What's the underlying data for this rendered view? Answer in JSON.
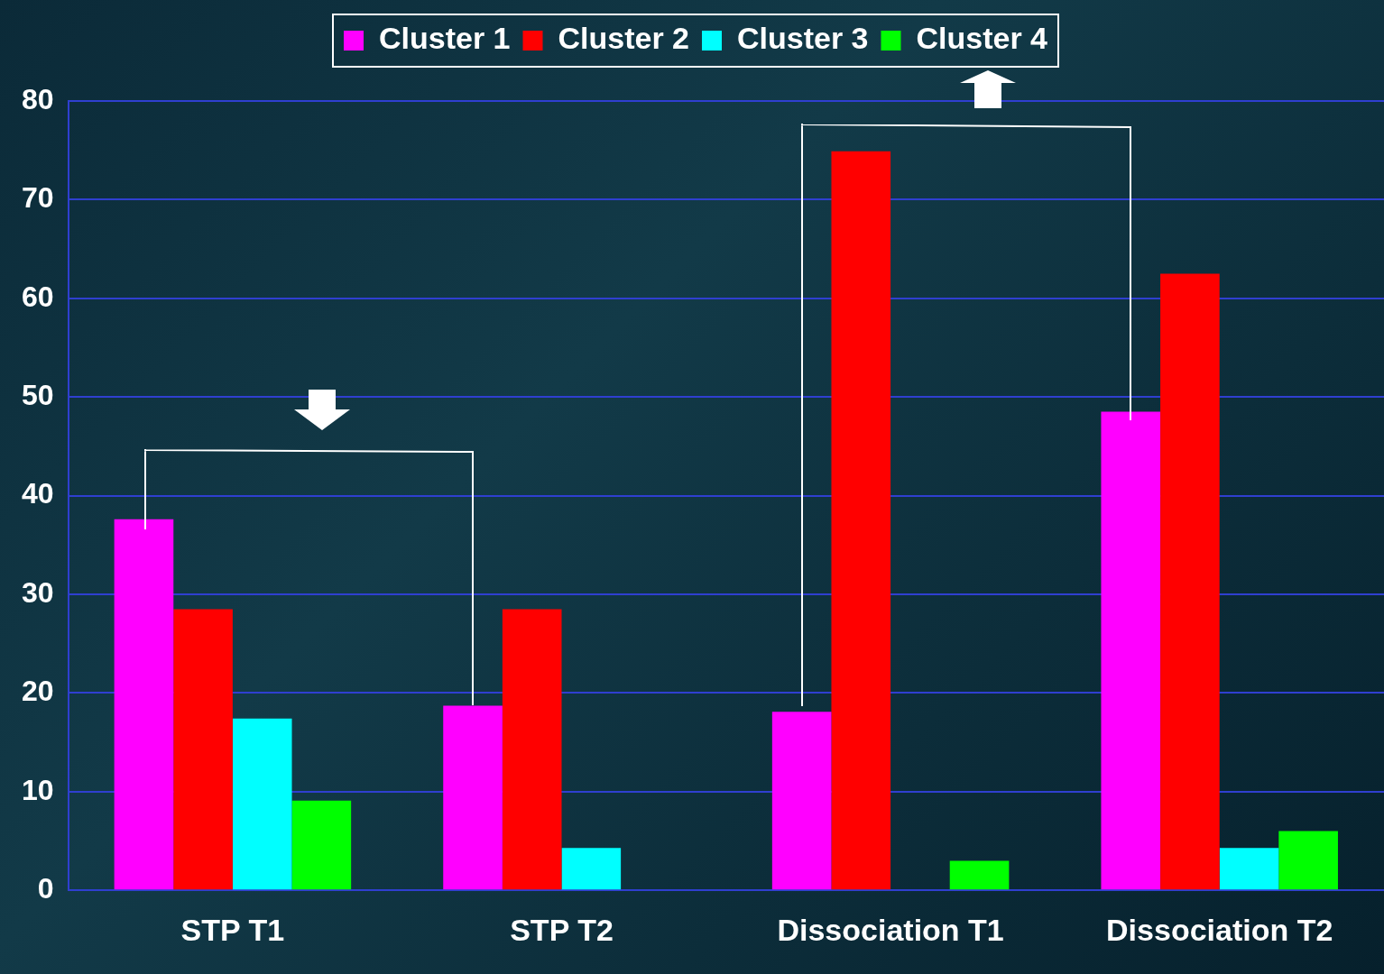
{
  "chart_data": {
    "type": "bar",
    "categories": [
      "STP T1",
      "STP T2",
      "Dissociation T1",
      "Dissociation T2"
    ],
    "series": [
      {
        "name": "Cluster 1",
        "color": "#ff00ff",
        "values": [
          37.6,
          18.7,
          18.1,
          48.5
        ]
      },
      {
        "name": "Cluster 2",
        "color": "#ff0000",
        "values": [
          28.5,
          28.5,
          74.9,
          62.5
        ]
      },
      {
        "name": "Cluster 3",
        "color": "#00ffff",
        "values": [
          17.4,
          4.3,
          0,
          4.3
        ]
      },
      {
        "name": "Cluster 4",
        "color": "#00ff00",
        "values": [
          9.1,
          0,
          3.0,
          6.0
        ]
      }
    ],
    "ylim": [
      0,
      80
    ],
    "yticks": [
      0,
      10,
      20,
      30,
      40,
      50,
      60,
      70,
      80
    ],
    "grid": "y",
    "legend": "top"
  }
}
